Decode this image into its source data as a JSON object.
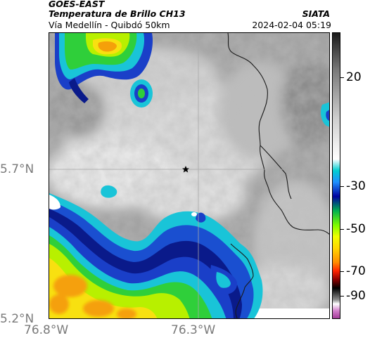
{
  "header": {
    "satellite": "GOES-EAST",
    "title": "Temperatura de Brillo CH13",
    "subtitle": "Vía Medellín - Quibdó 50km",
    "organization": "SIATA",
    "datetime": "2024-02-04 05:19"
  },
  "axes": {
    "lat_labels": [
      "5.7°N",
      "5.2°N"
    ],
    "lon_labels": [
      "76.8°W",
      "76.3°W"
    ]
  },
  "colorbar": {
    "labels": [
      "20",
      "-30",
      "-50",
      "-70",
      "-90"
    ],
    "stops": [
      "#9b2d8f",
      "#d07ac8",
      "#ffffff",
      "#8a8a8a",
      "#000000",
      "#8b0000",
      "#ff2200",
      "#ff8c00",
      "#ffd700",
      "#f0ff00",
      "#7cfc00",
      "#00b050",
      "#0000a0",
      "#1e90ff",
      "#00ced1",
      "#ffffff",
      "#cfcfcf",
      "#7a7a7a",
      "#1a1a1a"
    ]
  },
  "colors": {
    "cloud_warm": "#9a9a9a",
    "cloud_light": "#e4e4e4",
    "cyan": "#19c4d8",
    "blue": "#1a4fd0",
    "navy": "#0a1a8a",
    "green": "#2fcf3a",
    "lime": "#b8f000",
    "yellow": "#f8e010",
    "orange": "#f5a00a",
    "border_line": "#1a1a1a",
    "gridline": "#aaaaaa"
  },
  "marker": {
    "icon": "star-icon"
  }
}
